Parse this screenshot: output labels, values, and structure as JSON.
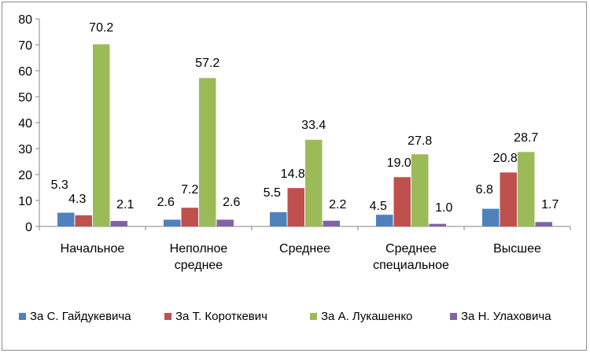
{
  "chart_data": {
    "type": "bar",
    "categories": [
      [
        "Начальное"
      ],
      [
        "Неполное",
        "среднее"
      ],
      [
        "Среднее"
      ],
      [
        "Среднее",
        "специальное"
      ],
      [
        "Высшее"
      ]
    ],
    "series": [
      {
        "name": "За С. Гайдукевича",
        "color": "#4F81BD",
        "values": [
          5.3,
          2.6,
          5.5,
          4.5,
          6.8
        ]
      },
      {
        "name": "За Т. Короткевич",
        "color": "#C0504D",
        "values": [
          4.3,
          7.2,
          14.8,
          19.0,
          20.8
        ]
      },
      {
        "name": "За А. Лукашенко",
        "color": "#9BBB59",
        "values": [
          70.2,
          57.2,
          33.4,
          27.8,
          28.7
        ]
      },
      {
        "name": "За Н. Улаховича",
        "color": "#8064A2",
        "values": [
          2.1,
          2.6,
          2.2,
          1.0,
          1.7
        ]
      }
    ],
    "data_labels": [
      [
        "5.3",
        "2.6",
        "5.5",
        "4.5",
        "6.8"
      ],
      [
        "4.3",
        "7.2",
        "14.8",
        "19.0",
        "20.8"
      ],
      [
        "70.2",
        "57.2",
        "33.4",
        "27.8",
        "28.7"
      ],
      [
        "2.1",
        "2.6",
        "2.2",
        "1.0",
        "1.7"
      ]
    ],
    "yticks": [
      "0",
      "10",
      "20",
      "30",
      "40",
      "50",
      "60",
      "70",
      "80"
    ],
    "ylim": [
      0,
      80
    ],
    "grid": false,
    "legend_position": "bottom"
  }
}
